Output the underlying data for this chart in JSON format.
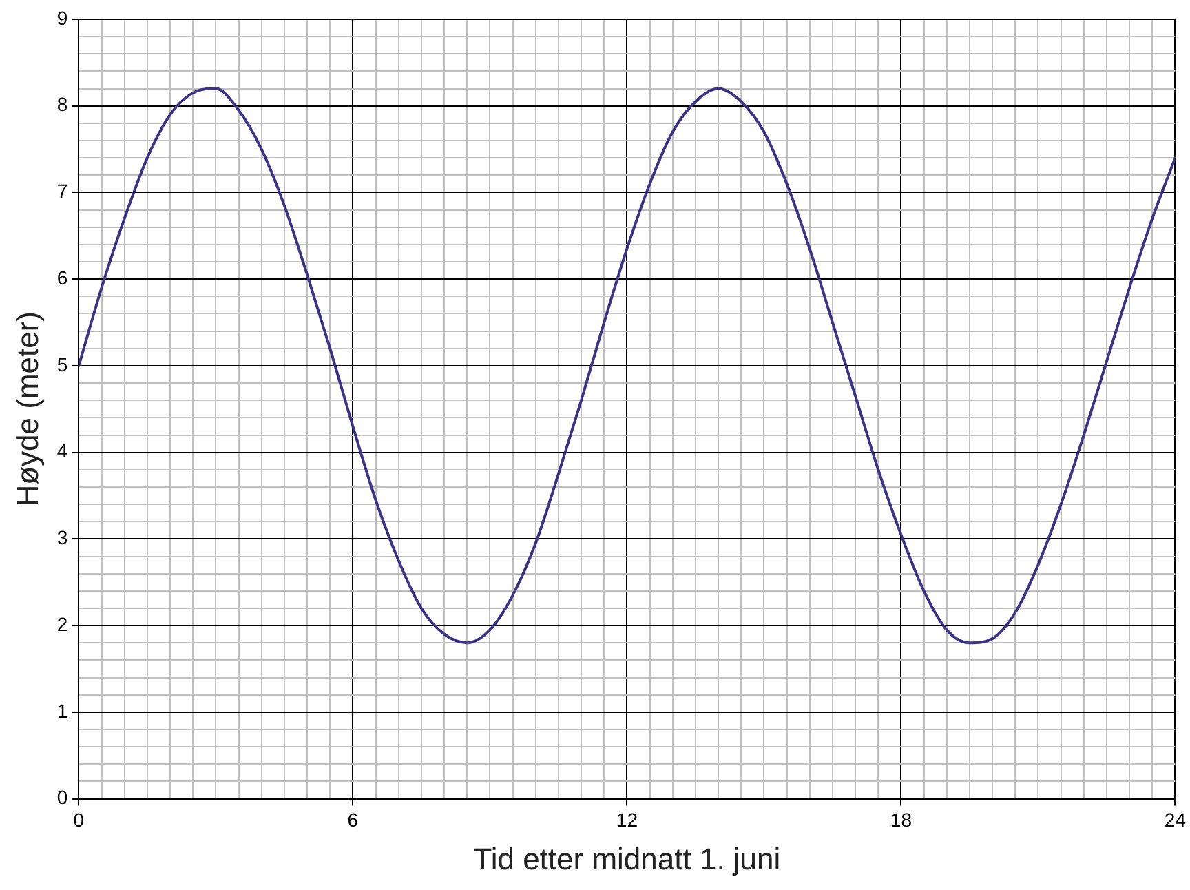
{
  "chart_data": {
    "type": "line",
    "xlabel": "Tid etter midnatt 1. juni",
    "ylabel": "Høyde (meter)",
    "x": [
      0,
      0.5,
      1,
      1.5,
      2,
      2.5,
      3,
      3.5,
      4,
      4.5,
      5,
      5.5,
      6,
      6.5,
      7,
      7.5,
      8,
      8.5,
      9,
      9.5,
      10,
      10.5,
      11,
      11.5,
      12,
      12.5,
      13,
      13.5,
      14,
      14.5,
      15,
      15.5,
      16,
      16.5,
      17,
      17.5,
      18,
      18.5,
      19,
      19.5,
      20,
      20.5,
      21,
      21.5,
      22,
      22.5,
      23,
      23.5,
      24
    ],
    "series": [
      {
        "color": "#3b3486",
        "values": [
          5.0,
          5.9,
          6.7,
          7.4,
          7.9,
          8.15,
          8.2,
          7.95,
          7.5,
          6.85,
          6.05,
          5.2,
          4.3,
          3.45,
          2.75,
          2.2,
          1.9,
          1.8,
          1.95,
          2.35,
          2.95,
          3.75,
          4.6,
          5.5,
          6.35,
          7.1,
          7.7,
          8.05,
          8.2,
          8.05,
          7.7,
          7.1,
          6.35,
          5.5,
          4.65,
          3.8,
          3.05,
          2.4,
          1.95,
          1.8,
          1.85,
          2.15,
          2.7,
          3.4,
          4.2,
          5.05,
          5.9,
          6.7,
          7.4
        ]
      }
    ],
    "xlim": [
      0,
      24
    ],
    "ylim": [
      0,
      9
    ],
    "xticks": [
      0,
      {
        "value": 0.5,
        "label": null
      },
      {
        "value": 1,
        "label": null
      },
      {
        "value": 1.5,
        "label": null
      },
      {
        "value": 2,
        "label": null
      },
      {
        "value": 2.5,
        "label": null
      },
      {
        "value": 3,
        "label": null
      },
      {
        "value": 3.5,
        "label": null
      },
      {
        "value": 4,
        "label": null
      },
      {
        "value": 4.5,
        "label": null
      },
      {
        "value": 5,
        "label": null
      },
      {
        "value": 5.5,
        "label": null
      },
      6,
      {
        "value": 6.5,
        "label": null
      },
      {
        "value": 7,
        "label": null
      },
      {
        "value": 7.5,
        "label": null
      },
      {
        "value": 8,
        "label": null
      },
      {
        "value": 8.5,
        "label": null
      },
      {
        "value": 9,
        "label": null
      },
      {
        "value": 9.5,
        "label": null
      },
      {
        "value": 10,
        "label": null
      },
      {
        "value": 10.5,
        "label": null
      },
      {
        "value": 11,
        "label": null
      },
      {
        "value": 11.5,
        "label": null
      },
      12,
      {
        "value": 12.5,
        "label": null
      },
      {
        "value": 13,
        "label": null
      },
      {
        "value": 13.5,
        "label": null
      },
      {
        "value": 14,
        "label": null
      },
      {
        "value": 14.5,
        "label": null
      },
      {
        "value": 15,
        "label": null
      },
      {
        "value": 15.5,
        "label": null
      },
      {
        "value": 16,
        "label": null
      },
      {
        "value": 16.5,
        "label": null
      },
      {
        "value": 17,
        "label": null
      },
      {
        "value": 17.5,
        "label": null
      },
      18,
      {
        "value": 18.5,
        "label": null
      },
      {
        "value": 19,
        "label": null
      },
      {
        "value": 19.5,
        "label": null
      },
      {
        "value": 20,
        "label": null
      },
      {
        "value": 20.5,
        "label": null
      },
      {
        "value": 21,
        "label": null
      },
      {
        "value": 21.5,
        "label": null
      },
      {
        "value": 22,
        "label": null
      },
      {
        "value": 22.5,
        "label": null
      },
      {
        "value": 23,
        "label": null
      },
      {
        "value": 23.5,
        "label": null
      },
      24
    ],
    "yticks": [
      0,
      {
        "value": 0.2,
        "label": null
      },
      {
        "value": 0.4,
        "label": null
      },
      {
        "value": 0.6,
        "label": null
      },
      {
        "value": 0.8,
        "label": null
      },
      1,
      {
        "value": 1.2,
        "label": null
      },
      {
        "value": 1.4,
        "label": null
      },
      {
        "value": 1.6,
        "label": null
      },
      {
        "value": 1.8,
        "label": null
      },
      2,
      {
        "value": 2.2,
        "label": null
      },
      {
        "value": 2.4,
        "label": null
      },
      {
        "value": 2.6,
        "label": null
      },
      {
        "value": 2.8,
        "label": null
      },
      3,
      {
        "value": 3.2,
        "label": null
      },
      {
        "value": 3.4,
        "label": null
      },
      {
        "value": 3.6,
        "label": null
      },
      {
        "value": 3.8,
        "label": null
      },
      4,
      {
        "value": 4.2,
        "label": null
      },
      {
        "value": 4.4,
        "label": null
      },
      {
        "value": 4.6,
        "label": null
      },
      {
        "value": 4.8,
        "label": null
      },
      5,
      {
        "value": 5.2,
        "label": null
      },
      {
        "value": 5.4,
        "label": null
      },
      {
        "value": 5.6,
        "label": null
      },
      {
        "value": 5.8,
        "label": null
      },
      6,
      {
        "value": 6.2,
        "label": null
      },
      {
        "value": 6.4,
        "label": null
      },
      {
        "value": 6.6,
        "label": null
      },
      {
        "value": 6.8,
        "label": null
      },
      7,
      {
        "value": 7.2,
        "label": null
      },
      {
        "value": 7.4,
        "label": null
      },
      {
        "value": 7.6,
        "label": null
      },
      {
        "value": 7.8,
        "label": null
      },
      8,
      {
        "value": 8.2,
        "label": null
      },
      {
        "value": 8.4,
        "label": null
      },
      {
        "value": 8.6,
        "label": null
      },
      {
        "value": 8.8,
        "label": null
      },
      9
    ],
    "grid": true,
    "legend": false,
    "marker": "none",
    "line_style": "solid"
  }
}
